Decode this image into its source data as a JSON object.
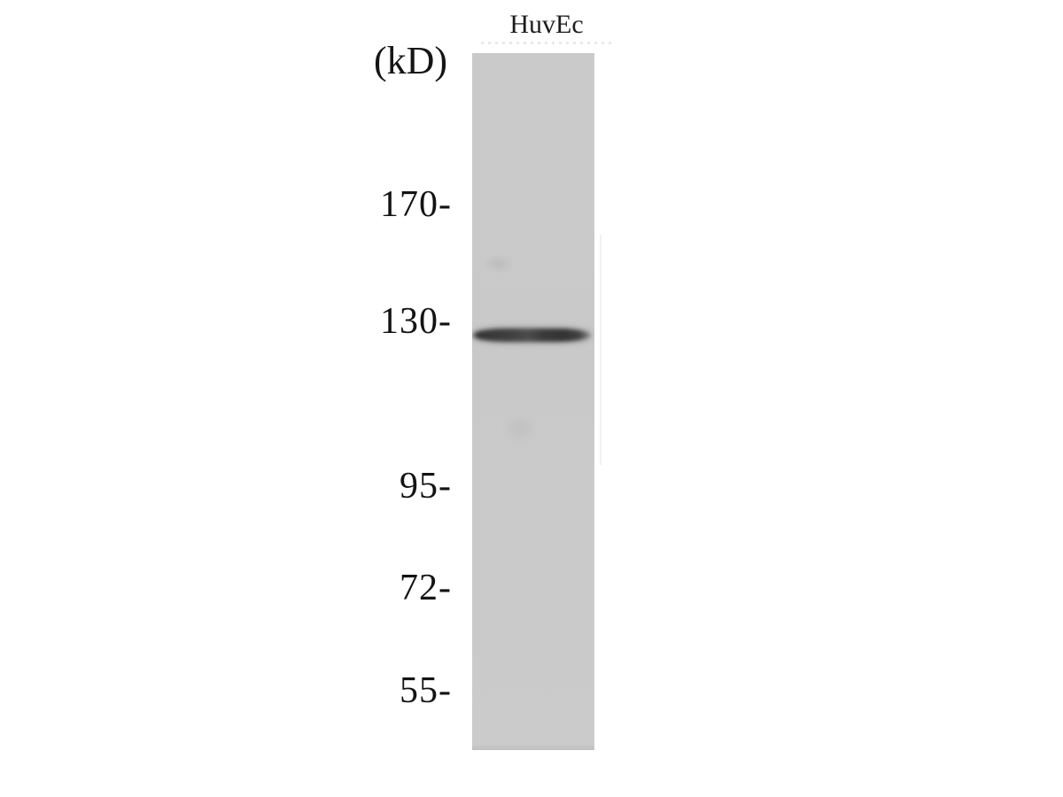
{
  "figure": {
    "type": "western-blot",
    "title": "HuvEc",
    "unit_label": "(kD)",
    "markers": [
      {
        "label": "170-",
        "kd": 170
      },
      {
        "label": "130-",
        "kd": 130
      },
      {
        "label": "95-",
        "kd": 95
      },
      {
        "label": "72-",
        "kd": 72
      },
      {
        "label": "55-",
        "kd": 55
      }
    ],
    "band": {
      "approx_kd": 128,
      "description": "single dark band just below the 130 kD marker"
    },
    "colors": {
      "background": "#ffffff",
      "lane_gray": "#c9c9c9",
      "band_dark": "#3a3a3a",
      "text": "#131313"
    }
  }
}
